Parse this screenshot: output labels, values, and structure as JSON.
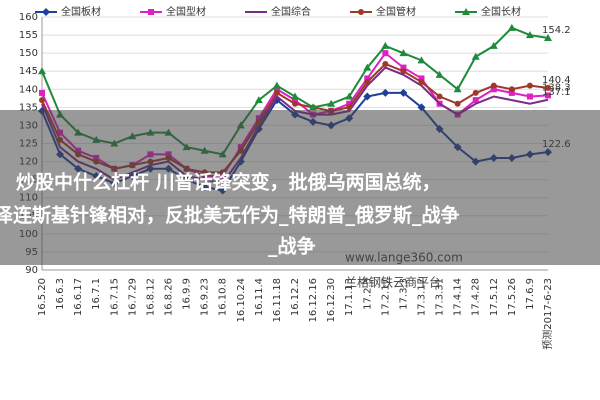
{
  "chart_data": {
    "type": "line",
    "categories": [
      "16.5.20",
      "16.6.3",
      "16.6.17",
      "16.7.1",
      "16.7.15",
      "16.7.29",
      "16.8.12",
      "16.8.26",
      "16.9.9",
      "16.9.23",
      "16.10.8",
      "16.10.24",
      "16.11.4",
      "16.11.18",
      "16.12.2",
      "16.12.16",
      "16.12.30",
      "17.1.13",
      "17.2.3",
      "17.2.17",
      "17.3.3",
      "17.3.17",
      "17.3.31",
      "17.4.14",
      "17.4.28",
      "17.5.12",
      "17.5.26",
      "17.6.9",
      "预测2017-6-23"
    ],
    "series": [
      {
        "name": "全国板材",
        "color": "#1f3f99",
        "marker": "diamond",
        "values": [
          134,
          122,
          118,
          116,
          114,
          116,
          118,
          118,
          115,
          113,
          112,
          120,
          129,
          137,
          133,
          131,
          130,
          132,
          138,
          139,
          139,
          135,
          129,
          124,
          120,
          121,
          121,
          122,
          122.6
        ]
      },
      {
        "name": "全国型材",
        "color": "#e020c0",
        "marker": "square",
        "values": [
          139,
          128,
          123,
          121,
          118,
          119,
          122,
          122,
          118,
          116,
          116,
          124,
          132,
          140,
          137,
          133,
          134,
          136,
          143,
          150,
          146,
          143,
          136,
          133,
          137,
          140,
          139,
          138,
          138.3
        ]
      },
      {
        "name": "全国综合",
        "color": "#7a2a8a",
        "marker": "none",
        "values": [
          136,
          124,
          120,
          118,
          115,
          117,
          119,
          120,
          116,
          115,
          114,
          121,
          130,
          138,
          134,
          133,
          133,
          134,
          141,
          146,
          144,
          141,
          136,
          133,
          136,
          138,
          137,
          136,
          137.1
        ]
      },
      {
        "name": "全国管材",
        "color": "#a0382a",
        "marker": "circle",
        "values": [
          137,
          126,
          122,
          120,
          118,
          119,
          120,
          121,
          118,
          117,
          117,
          123,
          131,
          139,
          136,
          135,
          134,
          135,
          142,
          147,
          145,
          142,
          138,
          136,
          139,
          141,
          140,
          141,
          140.4
        ]
      },
      {
        "name": "全国长材",
        "color": "#1e8a3a",
        "marker": "triangle",
        "values": [
          145,
          133,
          128,
          126,
          125,
          127,
          128,
          128,
          124,
          123,
          122,
          130,
          137,
          141,
          138,
          135,
          136,
          138,
          146,
          152,
          150,
          148,
          144,
          140,
          149,
          152,
          157,
          155,
          154.2
        ]
      }
    ],
    "ylim": [
      90,
      160
    ],
    "yticks": [
      90,
      95,
      100,
      105,
      110,
      115,
      120,
      125,
      130,
      135,
      140,
      145,
      150,
      155,
      160
    ],
    "grid": true,
    "legend": "top"
  },
  "overlay": {
    "lines": [
      "炒股中什么杠杆 川普话锋突变，批俄乌两国总统，",
      "泽连斯基针锋相对，反批美无作为_特朗普_俄罗斯_战争",
      "_战争"
    ],
    "watermark": [
      "www.lange360.com",
      "兰格钢铁云商平台"
    ]
  }
}
